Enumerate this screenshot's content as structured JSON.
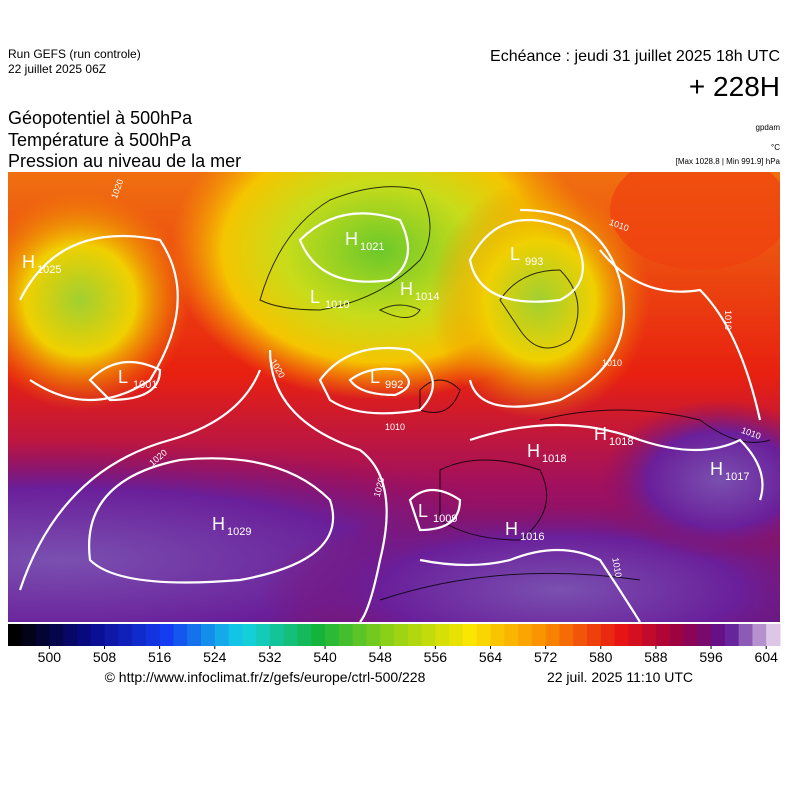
{
  "header": {
    "run": "Run GEFS (run controle)",
    "run_date": "22 juillet 2025 06Z",
    "echeance": "Echéance : jeudi 31 juillet 2025 18h UTC",
    "lead": "+ 228H"
  },
  "titles": [
    "Géopotentiel à 500hPa",
    "Température à 500hPa",
    "Pression au niveau de la mer"
  ],
  "units": {
    "geopotential": "gpdam",
    "temperature": "°C",
    "range": "[Max 1028.8 | Min 991.9] hPa"
  },
  "pressure_centers": [
    {
      "kind": "H",
      "value": "1025"
    },
    {
      "kind": "H",
      "value": "1021"
    },
    {
      "kind": "L",
      "value": "1010"
    },
    {
      "kind": "H",
      "value": "1014"
    },
    {
      "kind": "L",
      "value": "993"
    },
    {
      "kind": "L",
      "value": "1001"
    },
    {
      "kind": "L",
      "value": "992"
    },
    {
      "kind": "H",
      "value": "1018"
    },
    {
      "kind": "H",
      "value": "1018"
    },
    {
      "kind": "H",
      "value": "1017"
    },
    {
      "kind": "L",
      "value": "1009"
    },
    {
      "kind": "H",
      "value": "1016"
    },
    {
      "kind": "H",
      "value": "1029"
    }
  ],
  "isobar_labels": [
    "1020",
    "1020",
    "1020",
    "1020",
    "1010",
    "1010",
    "1010",
    "1010",
    "1010",
    "1010"
  ],
  "colorbar": {
    "lim": [
      494,
      606
    ],
    "ticks": [
      500,
      508,
      516,
      524,
      532,
      540,
      548,
      556,
      564,
      572,
      580,
      588,
      596,
      604
    ]
  },
  "footer": {
    "url": "© http://www.infoclimat.fr/z/gefs/europe/ctrl-500/228",
    "timestamp": "22 juil. 2025 11:10 UTC"
  }
}
